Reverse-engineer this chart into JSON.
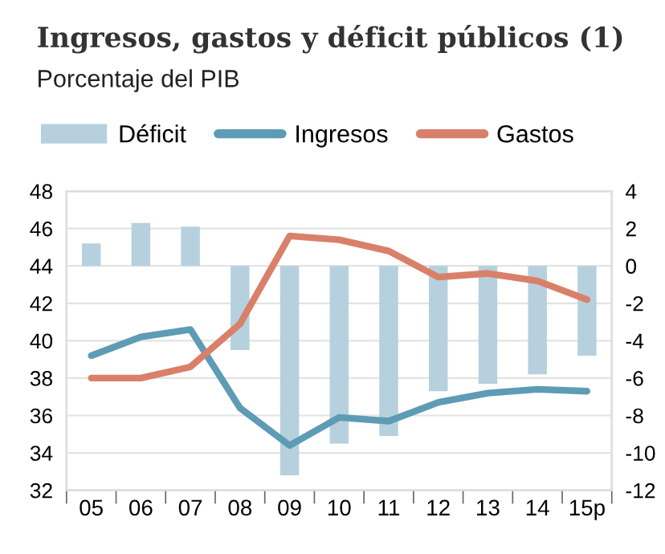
{
  "chart_data": {
    "type": "line",
    "title": "Ingresos, gastos y déficit públicos (1)",
    "subtitle": "Porcentaje del PIB",
    "categories": [
      "05",
      "06",
      "07",
      "08",
      "09",
      "10",
      "11",
      "12",
      "13",
      "14",
      "15p"
    ],
    "series": [
      {
        "name": "Déficit",
        "type": "bar",
        "axis": "y2",
        "color": "#b6d0de",
        "values": [
          1.2,
          2.3,
          2.1,
          -4.5,
          -11.2,
          -9.5,
          -9.1,
          -6.7,
          -6.3,
          -5.8,
          -4.8
        ]
      },
      {
        "name": "Ingresos",
        "color": "#5e9bb5",
        "values": [
          39.2,
          40.2,
          40.6,
          36.4,
          34.4,
          35.9,
          35.7,
          36.7,
          37.2,
          37.4,
          37.3
        ]
      },
      {
        "name": "Gastos",
        "color": "#d9806a",
        "values": [
          38.0,
          38.0,
          38.6,
          40.9,
          45.6,
          45.4,
          44.8,
          43.4,
          43.6,
          43.2,
          42.2
        ]
      }
    ],
    "ylim": [
      32,
      48
    ],
    "yticks": [
      32,
      34,
      36,
      38,
      40,
      42,
      44,
      46,
      48
    ],
    "y2lim": [
      -12,
      4
    ],
    "y2ticks": [
      -12,
      -10,
      -8,
      -6,
      -4,
      -2,
      0,
      2,
      4
    ],
    "grid": "y",
    "legend": "top",
    "marker": "none",
    "line_style": "solid"
  }
}
